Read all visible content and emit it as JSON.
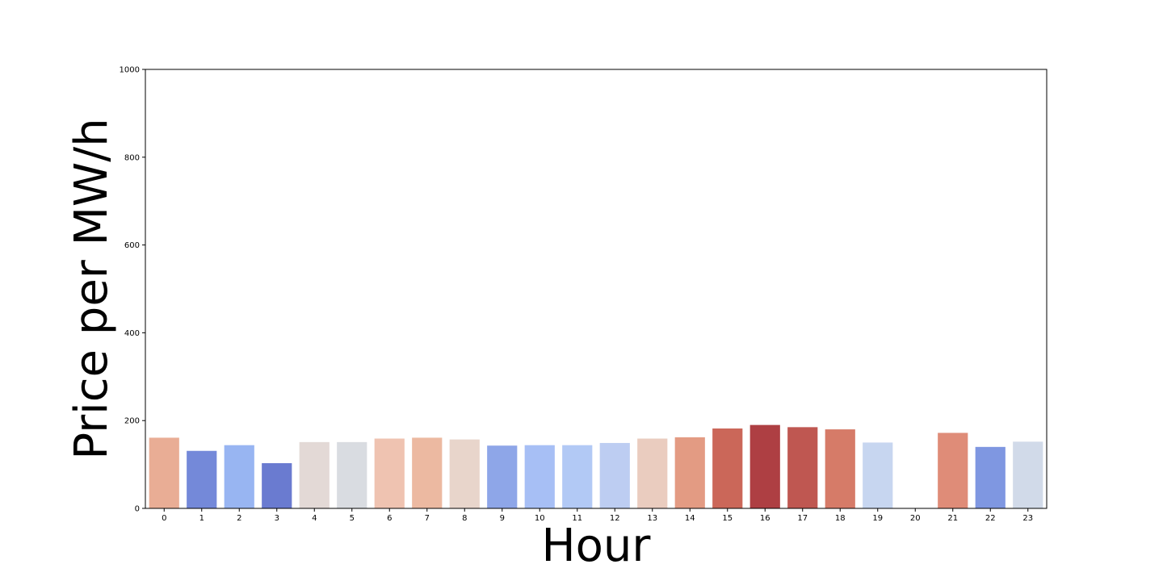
{
  "chart_data": {
    "type": "bar",
    "xlabel": "Hour",
    "ylabel": "Price per MW/h",
    "ylim": [
      0,
      1000
    ],
    "yticks": [
      0,
      200,
      400,
      600,
      800,
      1000
    ],
    "grid": false,
    "categories": [
      "0",
      "1",
      "2",
      "3",
      "4",
      "5",
      "6",
      "7",
      "8",
      "9",
      "10",
      "11",
      "12",
      "13",
      "14",
      "15",
      "16",
      "17",
      "18",
      "19",
      "20",
      "21",
      "22",
      "23"
    ],
    "values": [
      161,
      131,
      144,
      103,
      151,
      151,
      159,
      161,
      157,
      143,
      144,
      144,
      149,
      159,
      162,
      182,
      190,
      185,
      180,
      150,
      0,
      172,
      140,
      152
    ],
    "colors": [
      "#e9ad95",
      "#7489d9",
      "#98b5f2",
      "#6a7bd0",
      "#e3d9d6",
      "#d9dce1",
      "#efc3b1",
      "#ecb9a1",
      "#e8d5cb",
      "#8ea6e8",
      "#a7bff5",
      "#b2c9f5",
      "#bdcdf2",
      "#eaccbf",
      "#e39b83",
      "#cb6759",
      "#ae3f43",
      "#bf5751",
      "#d67b68",
      "#c7d6f0",
      "#ffffff",
      "#df8c78",
      "#7f97e1",
      "#d1dae9"
    ]
  }
}
